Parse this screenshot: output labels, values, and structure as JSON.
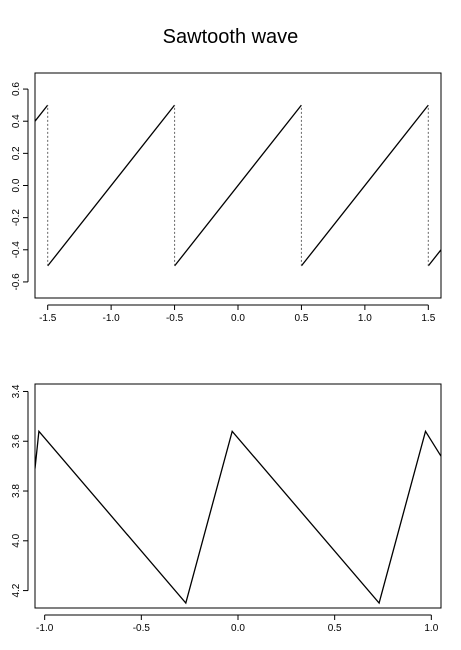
{
  "figure_title": "Sawtooth wave",
  "chart_data": [
    {
      "type": "line",
      "title": "",
      "xlabel": "",
      "ylabel": "",
      "xlim": [
        -1.6,
        1.6
      ],
      "ylim": [
        -0.7,
        0.7
      ],
      "x_ticks": [
        -1.5,
        -1.0,
        -0.5,
        0.0,
        0.5,
        1.0,
        1.5
      ],
      "x_tick_labels": [
        "-1.5",
        "-1.0",
        "-0.5",
        "0.0",
        "0.5",
        "1.0",
        "1.5"
      ],
      "y_ticks": [
        -0.6,
        -0.4,
        -0.2,
        0.0,
        0.2,
        0.4,
        0.6
      ],
      "y_tick_labels": [
        "-0.6",
        "-0.4",
        "-0.2",
        "0.0",
        "0.2",
        "0.4",
        "0.6"
      ],
      "y_reversed": false,
      "grid": false,
      "series": [
        {
          "style": "solid",
          "segments": [
            [
              [
                -1.6,
                0.4
              ],
              [
                -1.5,
                0.5
              ]
            ],
            [
              [
                -1.5,
                -0.5
              ],
              [
                -0.5,
                0.5
              ]
            ],
            [
              [
                -0.5,
                -0.5
              ],
              [
                0.5,
                0.5
              ]
            ],
            [
              [
                0.5,
                -0.5
              ],
              [
                1.5,
                0.5
              ]
            ],
            [
              [
                1.5,
                -0.5
              ],
              [
                1.6,
                -0.4
              ]
            ]
          ]
        },
        {
          "style": "dotted",
          "segments": [
            [
              [
                -1.5,
                -0.5
              ],
              [
                -1.5,
                0.5
              ]
            ],
            [
              [
                -0.5,
                -0.5
              ],
              [
                -0.5,
                0.5
              ]
            ],
            [
              [
                0.5,
                -0.5
              ],
              [
                0.5,
                0.5
              ]
            ],
            [
              [
                1.5,
                -0.5
              ],
              [
                1.5,
                0.5
              ]
            ]
          ]
        }
      ]
    },
    {
      "type": "line",
      "title": "",
      "xlabel": "",
      "ylabel": "",
      "xlim": [
        -1.05,
        1.05
      ],
      "ylim": [
        3.37,
        4.27
      ],
      "x_ticks": [
        -1.0,
        -0.5,
        0.0,
        0.5,
        1.0
      ],
      "x_tick_labels": [
        "-1.0",
        "-0.5",
        "0.0",
        "0.5",
        "1.0"
      ],
      "y_ticks": [
        3.4,
        3.6,
        3.8,
        4.0,
        4.2
      ],
      "y_tick_labels": [
        "3.4",
        "3.6",
        "3.8",
        "4.0",
        "4.2"
      ],
      "y_reversed": true,
      "grid": false,
      "series": [
        {
          "style": "solid",
          "segments": [
            [
              [
                -1.05,
                3.71
              ],
              [
                -1.03,
                3.56
              ],
              [
                -0.27,
                4.25
              ],
              [
                -0.03,
                3.56
              ],
              [
                0.73,
                4.25
              ],
              [
                0.97,
                3.56
              ],
              [
                1.05,
                3.66
              ]
            ]
          ]
        }
      ]
    }
  ]
}
